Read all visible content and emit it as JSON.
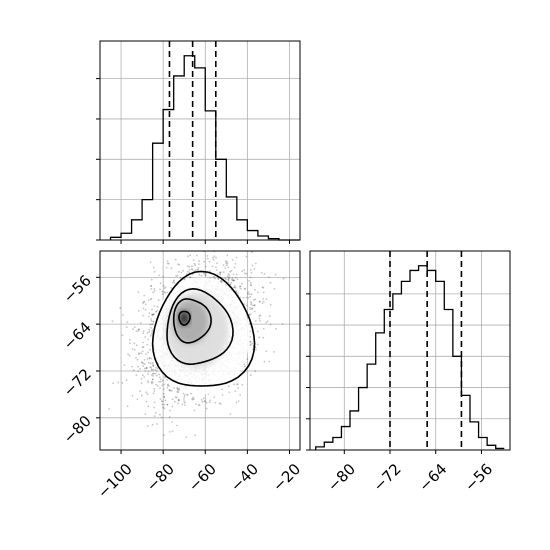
{
  "chart_data": {
    "type": "corner",
    "panels": [
      {
        "id": "hist-x",
        "type": "histogram",
        "xlim": [
          -110,
          -15
        ],
        "xticks": [
          -100,
          -80,
          -60,
          -40,
          -20
        ],
        "bins": [
          -105,
          -100,
          -95,
          -90,
          -85,
          -80,
          -75,
          -70,
          -65,
          -60,
          -55,
          -50,
          -45,
          -40,
          -35,
          -30,
          -25,
          -20,
          -15
        ],
        "counts": [
          2,
          5,
          15,
          30,
          72,
          97,
          122,
          137,
          128,
          96,
          60,
          32,
          15,
          7,
          3,
          1,
          0,
          0
        ],
        "quantiles": [
          -77,
          -66,
          -55
        ],
        "show_tick_labels": false
      },
      {
        "id": "joint",
        "type": "2d-density",
        "xlim": [
          -110,
          -15
        ],
        "ylim": [
          -85.5,
          -51.5
        ],
        "xticks": [
          -100,
          -80,
          -60,
          -40,
          -20
        ],
        "xtick_labels": [
          "−100",
          "−80",
          "−60",
          "−40",
          "−20"
        ],
        "yticks": [
          -56,
          -64,
          -72,
          -80
        ],
        "ytick_labels": [
          "−56",
          "−64",
          "−72",
          "−80"
        ],
        "density_peak": [
          -68,
          -63
        ],
        "contour_levels": [
          {
            "level": "outer",
            "cx": -62,
            "cy": -66,
            "rx": 23,
            "ry": 10
          },
          {
            "level": "mid",
            "cx": -64,
            "cy": -65,
            "rx": 15,
            "ry": 6.5
          },
          {
            "level": "inner",
            "cx": -67,
            "cy": -63.6,
            "rx": 8.5,
            "ry": 3.8
          },
          {
            "level": "core",
            "cx": -70,
            "cy": -63,
            "rx": 2.5,
            "ry": 1.2
          }
        ]
      },
      {
        "id": "hist-y",
        "type": "histogram",
        "xlim": [
          -86,
          -51
        ],
        "xticks": [
          -80,
          -72,
          -64,
          -56
        ],
        "xtick_labels": [
          "−80",
          "−72",
          "−64",
          "−56"
        ],
        "bins": [
          -85,
          -83.5,
          -82,
          -80.5,
          -79,
          -77.5,
          -76,
          -74.5,
          -73,
          -71.5,
          -70,
          -68.5,
          -67,
          -65.5,
          -64,
          -62.5,
          -61,
          -59.5,
          -58,
          -56.5,
          -55,
          -53.5,
          -52
        ],
        "counts": [
          2,
          5,
          8,
          15,
          25,
          40,
          55,
          75,
          90,
          100,
          108,
          115,
          118,
          115,
          108,
          90,
          60,
          35,
          18,
          8,
          3,
          1
        ],
        "quantiles": [
          -72,
          -65.5,
          -59.5
        ]
      }
    ]
  }
}
